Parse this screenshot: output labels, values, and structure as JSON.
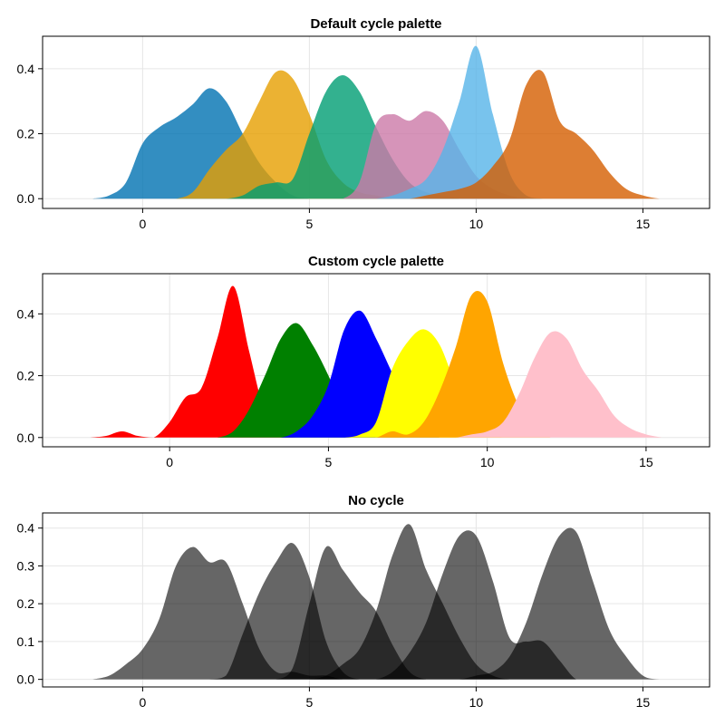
{
  "chart_data": [
    {
      "type": "area",
      "title": "Default cycle palette",
      "xlim": [
        -3,
        17
      ],
      "ylim": [
        -0.03,
        0.5
      ],
      "xticks": [
        0,
        5,
        10,
        15
      ],
      "yticks": [
        0.0,
        0.2,
        0.4
      ],
      "ytick_labels": [
        "0.0",
        "0.2",
        "0.4"
      ],
      "fill_opacity": 0.8,
      "x": [
        -1.5,
        -1,
        -0.5,
        0,
        0.5,
        1,
        1.5,
        2,
        2.5,
        3,
        3.5,
        4,
        4.5,
        5,
        5.5,
        6,
        6.5,
        7,
        7.5,
        8,
        8.5,
        9,
        9.5,
        10,
        10.5,
        11,
        11.5,
        12,
        12.5,
        13,
        13.5,
        14,
        14.5,
        15,
        15.5,
        16
      ],
      "series": [
        {
          "color": "#0072B2",
          "values": [
            0,
            0.01,
            0.05,
            0.17,
            0.22,
            0.25,
            0.29,
            0.34,
            0.3,
            0.2,
            0.11,
            0.05,
            0.01,
            0,
            0,
            0,
            0,
            0,
            0,
            0,
            0,
            0,
            0,
            0,
            0,
            0,
            0,
            0,
            0,
            0,
            0,
            0,
            0,
            0,
            0,
            0
          ]
        },
        {
          "color": "#E69F00",
          "values": [
            0,
            0,
            0,
            0,
            0,
            0,
            0.02,
            0.09,
            0.15,
            0.2,
            0.3,
            0.39,
            0.37,
            0.26,
            0.12,
            0.05,
            0.02,
            0.01,
            0,
            0,
            0,
            0,
            0,
            0,
            0,
            0,
            0,
            0,
            0,
            0,
            0,
            0,
            0,
            0,
            0,
            0
          ]
        },
        {
          "color": "#009E73",
          "values": [
            0,
            0,
            0,
            0,
            0,
            0,
            0,
            0,
            0,
            0.01,
            0.04,
            0.05,
            0.06,
            0.2,
            0.33,
            0.38,
            0.33,
            0.22,
            0.12,
            0.05,
            0.02,
            0.01,
            0,
            0,
            0,
            0,
            0,
            0,
            0,
            0,
            0,
            0,
            0,
            0,
            0,
            0
          ]
        },
        {
          "color": "#CC79A7",
          "values": [
            0,
            0,
            0,
            0,
            0,
            0,
            0,
            0,
            0,
            0,
            0,
            0,
            0,
            0,
            0,
            0,
            0.05,
            0.23,
            0.26,
            0.24,
            0.27,
            0.24,
            0.15,
            0.07,
            0.03,
            0.01,
            0,
            0,
            0,
            0,
            0,
            0,
            0,
            0,
            0,
            0
          ]
        },
        {
          "color": "#56B4E9",
          "values": [
            0,
            0,
            0,
            0,
            0,
            0,
            0,
            0,
            0,
            0,
            0,
            0,
            0,
            0,
            0,
            0,
            0,
            0,
            0.01,
            0.03,
            0.06,
            0.15,
            0.3,
            0.47,
            0.26,
            0.08,
            0.01,
            0,
            0,
            0,
            0,
            0,
            0,
            0,
            0,
            0
          ]
        },
        {
          "color": "#D55E00",
          "values": [
            0,
            0,
            0,
            0,
            0,
            0,
            0,
            0,
            0,
            0,
            0,
            0,
            0,
            0,
            0,
            0,
            0,
            0,
            0,
            0,
            0.01,
            0.02,
            0.03,
            0.05,
            0.1,
            0.18,
            0.35,
            0.39,
            0.24,
            0.2,
            0.15,
            0.08,
            0.03,
            0.01,
            0,
            0
          ]
        }
      ]
    },
    {
      "type": "area",
      "title": "Custom cycle palette",
      "xlim": [
        -4,
        17
      ],
      "ylim": [
        -0.03,
        0.53
      ],
      "xticks": [
        0,
        5,
        10,
        15
      ],
      "yticks": [
        0.0,
        0.2,
        0.4
      ],
      "ytick_labels": [
        "0.0",
        "0.2",
        "0.4"
      ],
      "fill_opacity": 1,
      "x": [
        -2.5,
        -2,
        -1.5,
        -1,
        -0.5,
        0,
        0.5,
        1,
        1.5,
        2,
        2.5,
        3,
        3.5,
        4,
        4.5,
        5,
        5.5,
        6,
        6.5,
        7,
        7.5,
        8,
        8.5,
        9,
        9.5,
        10,
        10.5,
        11,
        11.5,
        12,
        12.5,
        13,
        13.5,
        14,
        14.5,
        15,
        15.5
      ],
      "series": [
        {
          "color": "#FF0000",
          "values": [
            0,
            0.005,
            0.02,
            0.005,
            0,
            0.05,
            0.13,
            0.16,
            0.32,
            0.49,
            0.28,
            0.08,
            0.01,
            0,
            0,
            0,
            0,
            0,
            0,
            0,
            0,
            0,
            0,
            0,
            0,
            0,
            0,
            0,
            0,
            0,
            0,
            0,
            0,
            0,
            0,
            0,
            0
          ]
        },
        {
          "color": "#008000",
          "values": [
            0,
            0,
            0,
            0,
            0,
            0,
            0,
            0,
            0,
            0.02,
            0.09,
            0.2,
            0.32,
            0.37,
            0.3,
            0.2,
            0.08,
            0.02,
            0,
            0,
            0,
            0,
            0,
            0,
            0,
            0,
            0,
            0,
            0,
            0,
            0,
            0,
            0,
            0,
            0,
            0,
            0
          ]
        },
        {
          "color": "#0000FF",
          "values": [
            0,
            0,
            0,
            0,
            0,
            0,
            0,
            0,
            0,
            0,
            0,
            0,
            0,
            0.02,
            0.07,
            0.17,
            0.35,
            0.41,
            0.32,
            0.21,
            0.1,
            0.03,
            0,
            0,
            0,
            0,
            0,
            0,
            0,
            0,
            0,
            0,
            0,
            0,
            0,
            0,
            0
          ]
        },
        {
          "color": "#FFFF00",
          "values": [
            0,
            0,
            0,
            0,
            0,
            0,
            0,
            0,
            0,
            0,
            0,
            0,
            0,
            0,
            0,
            0,
            0,
            0.01,
            0.05,
            0.22,
            0.31,
            0.35,
            0.3,
            0.17,
            0.05,
            0.01,
            0,
            0,
            0,
            0,
            0,
            0,
            0,
            0,
            0,
            0,
            0
          ]
        },
        {
          "color": "#FFA500",
          "values": [
            0,
            0,
            0,
            0,
            0,
            0,
            0,
            0,
            0,
            0,
            0,
            0,
            0,
            0,
            0,
            0,
            0,
            0,
            0,
            0.02,
            0.01,
            0.05,
            0.15,
            0.29,
            0.46,
            0.44,
            0.24,
            0.1,
            0.02,
            0,
            0,
            0,
            0,
            0,
            0,
            0,
            0
          ]
        },
        {
          "color": "#FFC0CB",
          "values": [
            0,
            0,
            0,
            0,
            0,
            0,
            0,
            0,
            0,
            0,
            0,
            0,
            0,
            0,
            0,
            0,
            0,
            0,
            0,
            0,
            0,
            0,
            0,
            0,
            0.01,
            0.02,
            0.05,
            0.14,
            0.26,
            0.34,
            0.32,
            0.22,
            0.15,
            0.07,
            0.03,
            0.01,
            0
          ]
        }
      ]
    },
    {
      "type": "area",
      "title": "No cycle",
      "xlim": [
        -3,
        17
      ],
      "ylim": [
        -0.02,
        0.44
      ],
      "xticks": [
        0,
        5,
        10,
        15
      ],
      "yticks": [
        0.0,
        0.1,
        0.2,
        0.3,
        0.4
      ],
      "ytick_labels": [
        "0.0",
        "0.1",
        "0.2",
        "0.3",
        "0.4"
      ],
      "fill_opacity": 0.6,
      "x": [
        -1.5,
        -1,
        -0.5,
        0,
        0.5,
        1,
        1.5,
        2,
        2.5,
        3,
        3.5,
        4,
        4.5,
        5,
        5.5,
        6,
        6.5,
        7,
        7.5,
        8,
        8.5,
        9,
        9.5,
        10,
        10.5,
        11,
        11.5,
        12,
        12.5,
        13,
        13.5,
        14,
        14.5,
        15,
        15.5,
        16
      ],
      "series": [
        {
          "color": "#000000",
          "values": [
            0,
            0.01,
            0.04,
            0.08,
            0.16,
            0.3,
            0.35,
            0.31,
            0.31,
            0.2,
            0.08,
            0.02,
            0.02,
            0.01,
            0.01,
            0,
            0,
            0,
            0,
            0,
            0,
            0,
            0,
            0,
            0,
            0,
            0,
            0,
            0,
            0,
            0,
            0,
            0,
            0,
            0,
            0
          ]
        },
        {
          "color": "#000000",
          "values": [
            0,
            0,
            0,
            0,
            0,
            0,
            0,
            0,
            0.01,
            0.12,
            0.23,
            0.31,
            0.36,
            0.27,
            0.1,
            0.02,
            0,
            0,
            0,
            0,
            0,
            0,
            0,
            0,
            0,
            0,
            0,
            0,
            0,
            0,
            0,
            0,
            0,
            0,
            0,
            0
          ]
        },
        {
          "color": "#000000",
          "values": [
            0,
            0,
            0,
            0,
            0,
            0,
            0,
            0,
            0,
            0,
            0,
            0,
            0.03,
            0.2,
            0.35,
            0.29,
            0.23,
            0.18,
            0.09,
            0.02,
            0,
            0,
            0,
            0,
            0,
            0,
            0,
            0,
            0,
            0,
            0,
            0,
            0,
            0,
            0,
            0
          ]
        },
        {
          "color": "#000000",
          "values": [
            0,
            0,
            0,
            0,
            0,
            0,
            0,
            0,
            0,
            0,
            0,
            0,
            0,
            0,
            0.01,
            0.04,
            0.08,
            0.18,
            0.33,
            0.41,
            0.29,
            0.2,
            0.11,
            0.04,
            0.01,
            0,
            0,
            0,
            0,
            0,
            0,
            0,
            0,
            0,
            0,
            0
          ]
        },
        {
          "color": "#000000",
          "values": [
            0,
            0,
            0,
            0,
            0,
            0,
            0,
            0,
            0,
            0,
            0,
            0,
            0,
            0,
            0,
            0,
            0,
            0,
            0.02,
            0.07,
            0.15,
            0.28,
            0.38,
            0.38,
            0.26,
            0.11,
            0.1,
            0.1,
            0.05,
            0,
            0,
            0,
            0,
            0,
            0,
            0
          ]
        },
        {
          "color": "#000000",
          "values": [
            0,
            0,
            0,
            0,
            0,
            0,
            0,
            0,
            0,
            0,
            0,
            0,
            0,
            0,
            0,
            0,
            0,
            0,
            0,
            0,
            0,
            0,
            0,
            0.01,
            0.02,
            0.06,
            0.15,
            0.28,
            0.38,
            0.39,
            0.26,
            0.13,
            0.06,
            0.01,
            0,
            0
          ]
        }
      ]
    }
  ]
}
